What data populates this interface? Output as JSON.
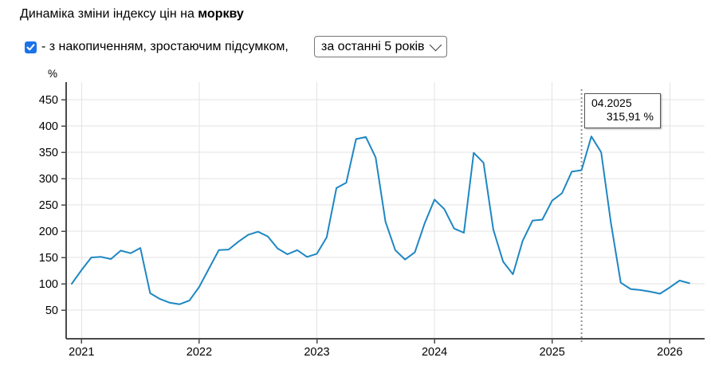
{
  "title": {
    "prefix": "Динаміка зміни індексу цін на ",
    "subject": "моркву"
  },
  "controls": {
    "cumulative_checkbox": {
      "checked": true,
      "label": "- з накопиченням, зростаючим підсумком,"
    },
    "period_select": {
      "value": "за останні 5 років"
    }
  },
  "colors": {
    "line": "#1e87c3",
    "checkbox_accent": "#1a73e8",
    "grid": "#e3e3e3",
    "axis": "#4a4a4a",
    "marker_line": "#909090"
  },
  "chart_data": {
    "type": "line",
    "title": "Динаміка зміни індексу цін на моркву",
    "ylabel": "%",
    "ylim": [
      0,
      475
    ],
    "yticks": [
      50,
      100,
      150,
      200,
      250,
      300,
      350,
      400,
      450
    ],
    "xticks": [
      "2021",
      "2022",
      "2023",
      "2024",
      "2025",
      "2026"
    ],
    "grid": true,
    "legend": "none",
    "line_color": "#1e87c3",
    "x": [
      "12.2020",
      "01.2021",
      "02.2021",
      "03.2021",
      "04.2021",
      "05.2021",
      "06.2021",
      "07.2021",
      "08.2021",
      "09.2021",
      "10.2021",
      "11.2021",
      "12.2021",
      "01.2022",
      "02.2022",
      "03.2022",
      "04.2022",
      "05.2022",
      "06.2022",
      "07.2022",
      "08.2022",
      "09.2022",
      "10.2022",
      "11.2022",
      "12.2022",
      "01.2023",
      "02.2023",
      "03.2023",
      "04.2023",
      "05.2023",
      "06.2023",
      "07.2023",
      "08.2023",
      "09.2023",
      "10.2023",
      "11.2023",
      "12.2023",
      "01.2024",
      "02.2024",
      "03.2024",
      "04.2024",
      "05.2024",
      "06.2024",
      "07.2024",
      "08.2024",
      "09.2024",
      "10.2024",
      "11.2024",
      "12.2024",
      "01.2025",
      "02.2025",
      "03.2025",
      "04.2025",
      "05.2025",
      "06.2025",
      "07.2025",
      "08.2025",
      "09.2025",
      "10.2025",
      "11.2025",
      "12.2025",
      "01.2026",
      "02.2026",
      "03.2026"
    ],
    "values": [
      100,
      126,
      150,
      151,
      147,
      163,
      158,
      168,
      82,
      71,
      64,
      61,
      68,
      94,
      129,
      164,
      165,
      180,
      193,
      199,
      190,
      167,
      156,
      164,
      151,
      157,
      188,
      282,
      292,
      375,
      379,
      340,
      218,
      164,
      146,
      160,
      215,
      260,
      242,
      205,
      197,
      349,
      330,
      203,
      142,
      118,
      182,
      220,
      222,
      258,
      272,
      313,
      315.91,
      380,
      350,
      215,
      102,
      90,
      88,
      85,
      81,
      93,
      106,
      101
    ],
    "marker": {
      "month": "04.2025",
      "value": 315.91,
      "label": "04.2025",
      "value_text": "315,91 %"
    }
  }
}
